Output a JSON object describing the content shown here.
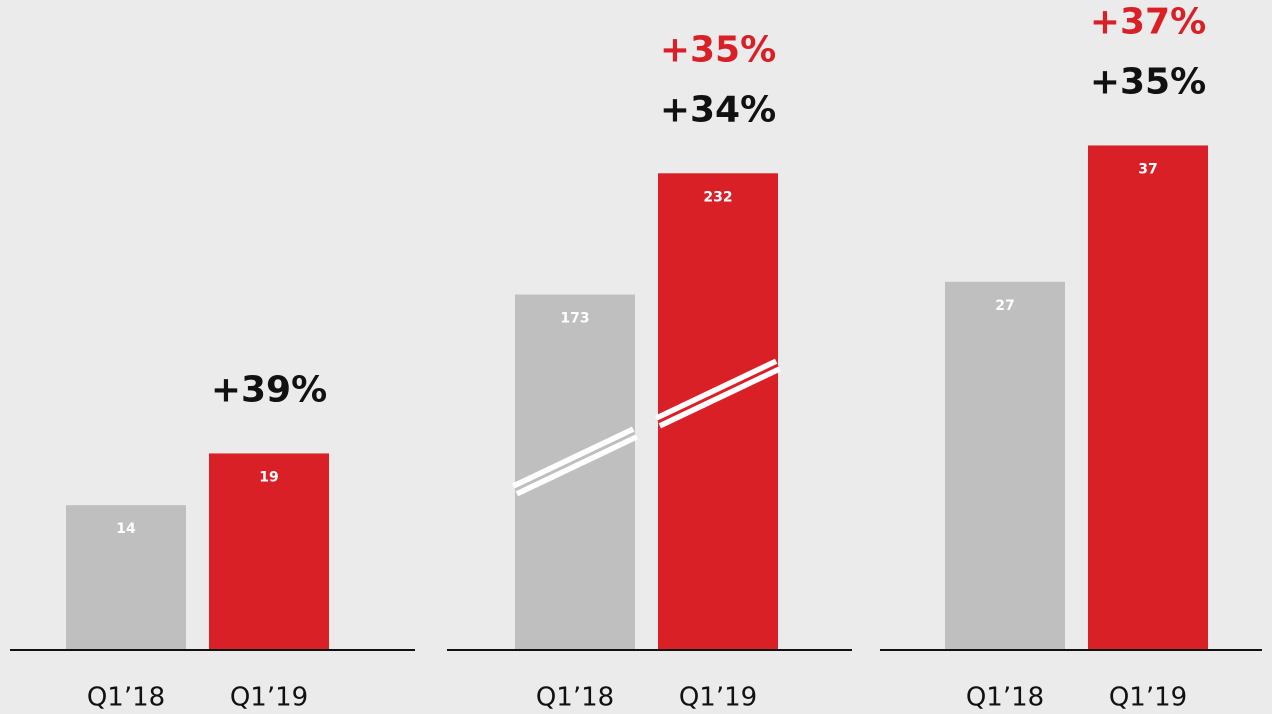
{
  "chart_data": [
    {
      "type": "bar",
      "categories": [
        "Q1’18",
        "Q1’19"
      ],
      "values": [
        14,
        19
      ],
      "colors": [
        "#bfbfbf",
        "#d92027"
      ],
      "ylim": [
        0,
        58
      ],
      "annotations": [
        {
          "text": "+39%",
          "color": "#111111"
        }
      ]
    },
    {
      "type": "bar",
      "categories": [
        "Q1’18",
        "Q1’19"
      ],
      "values": [
        173,
        232
      ],
      "colors": [
        "#bfbfbf",
        "#d92027"
      ],
      "ylim": [
        0,
        292
      ],
      "axis_break": true,
      "annotations": [
        {
          "text": "+35%",
          "color": "#d92027"
        },
        {
          "text": "+34%",
          "color": "#111111"
        }
      ]
    },
    {
      "type": "bar",
      "categories": [
        "Q1’18",
        "Q1’19"
      ],
      "values": [
        27,
        37
      ],
      "colors": [
        "#bfbfbf",
        "#d92027"
      ],
      "ylim": [
        0,
        44
      ],
      "annotations": [
        {
          "text": "+37%",
          "color": "#d92027"
        },
        {
          "text": "+35%",
          "color": "#111111"
        }
      ]
    }
  ]
}
